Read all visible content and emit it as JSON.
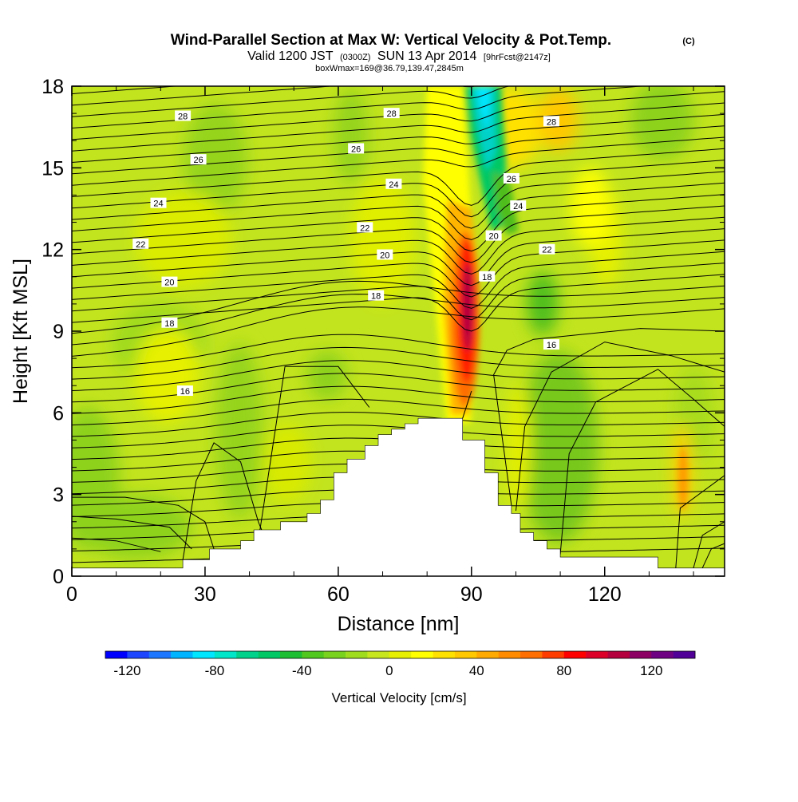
{
  "title": {
    "main": "Wind-Parallel Section at Max W: Vertical Velocity & Pot.Temp.",
    "copyright": "(C)",
    "valid_prefix": "Valid 1200 JST",
    "valid_utc": "(0300Z)",
    "valid_date": "SUN 13 Apr 2014",
    "forecast": "[9hrFcst@2147z]",
    "boxinfo": "boxWmax=169@36.79,139.47,2845m"
  },
  "chart_data": {
    "type": "contour_section",
    "xlabel": "Distance [nm]",
    "ylabel": "Height [Kft MSL]",
    "xlim": [
      0,
      147
    ],
    "ylim": [
      0,
      18
    ],
    "x_ticks": [
      0,
      30,
      60,
      90,
      120
    ],
    "y_ticks": [
      0,
      3,
      6,
      9,
      12,
      15,
      18
    ],
    "colorbar": {
      "label": "Vertical Velocity [cm/s]",
      "range": [
        -130,
        140
      ],
      "step": 10,
      "tick_values": [
        -120,
        -80,
        -40,
        0,
        40,
        80,
        120
      ],
      "tick_labels": [
        "-120",
        "-80",
        "-40",
        "0",
        "40",
        "80",
        "120"
      ],
      "colors": [
        "#0000ff",
        "#1e46ff",
        "#1e78ff",
        "#00b4ff",
        "#00e6ff",
        "#00e6c8",
        "#00d28c",
        "#00c864",
        "#1ebe32",
        "#50c81e",
        "#78d21e",
        "#a0dc1e",
        "#c8e61e",
        "#e6f000",
        "#ffff00",
        "#ffe100",
        "#ffc800",
        "#ffaa00",
        "#ff8c00",
        "#ff6e00",
        "#ff3c00",
        "#ff0000",
        "#dc0028",
        "#b4003c",
        "#8c0064",
        "#6e0082",
        "#500096"
      ]
    },
    "theta_contour_labels": [
      {
        "value": "28",
        "x": 25,
        "y": 16.9
      },
      {
        "value": "28",
        "x": 72,
        "y": 17.0
      },
      {
        "value": "28",
        "x": 108,
        "y": 16.7
      },
      {
        "value": "26",
        "x": 28.5,
        "y": 15.3
      },
      {
        "value": "26",
        "x": 64,
        "y": 15.7
      },
      {
        "value": "26",
        "x": 99,
        "y": 14.6
      },
      {
        "value": "24",
        "x": 19.5,
        "y": 13.7
      },
      {
        "value": "24",
        "x": 72.5,
        "y": 14.4
      },
      {
        "value": "24",
        "x": 100.5,
        "y": 13.6
      },
      {
        "value": "22",
        "x": 15.5,
        "y": 12.2
      },
      {
        "value": "22",
        "x": 66,
        "y": 12.8
      },
      {
        "value": "22",
        "x": 107,
        "y": 12.0
      },
      {
        "value": "20",
        "x": 22,
        "y": 10.8
      },
      {
        "value": "20",
        "x": 70.5,
        "y": 11.8
      },
      {
        "value": "20",
        "x": 95,
        "y": 12.5
      },
      {
        "value": "18",
        "x": 22,
        "y": 9.3
      },
      {
        "value": "18",
        "x": 68.5,
        "y": 10.3
      },
      {
        "value": "18",
        "x": 93.5,
        "y": 11.0
      },
      {
        "value": "16",
        "x": 25.5,
        "y": 6.8
      },
      {
        "value": "16",
        "x": 108,
        "y": 8.5
      }
    ],
    "terrain_profile": [
      [
        0,
        0.3
      ],
      [
        25,
        0.3
      ],
      [
        25,
        0.6
      ],
      [
        31,
        0.6
      ],
      [
        31,
        1.0
      ],
      [
        38,
        1.0
      ],
      [
        38,
        1.3
      ],
      [
        41,
        1.3
      ],
      [
        41,
        1.7
      ],
      [
        47,
        1.7
      ],
      [
        47,
        2.0
      ],
      [
        53,
        2.0
      ],
      [
        53,
        2.3
      ],
      [
        56,
        2.3
      ],
      [
        56,
        2.8
      ],
      [
        59,
        2.8
      ],
      [
        59,
        3.8
      ],
      [
        62,
        3.8
      ],
      [
        62,
        4.3
      ],
      [
        66,
        4.3
      ],
      [
        66,
        4.8
      ],
      [
        69,
        4.8
      ],
      [
        69,
        5.2
      ],
      [
        72,
        5.2
      ],
      [
        72,
        5.4
      ],
      [
        75,
        5.4
      ],
      [
        75,
        5.6
      ],
      [
        78,
        5.6
      ],
      [
        78,
        5.8
      ],
      [
        88,
        5.8
      ],
      [
        88,
        5.0
      ],
      [
        91,
        5.0
      ],
      [
        91,
        5.0
      ],
      [
        93,
        5.0
      ],
      [
        93,
        3.8
      ],
      [
        96,
        3.8
      ],
      [
        96,
        2.6
      ],
      [
        99,
        2.6
      ],
      [
        99,
        2.3
      ],
      [
        101,
        2.3
      ],
      [
        101,
        1.6
      ],
      [
        104,
        1.6
      ],
      [
        104,
        1.3
      ],
      [
        107,
        1.3
      ],
      [
        107,
        1.0
      ],
      [
        110,
        1.0
      ],
      [
        110,
        0.7
      ],
      [
        132,
        0.7
      ],
      [
        132,
        0.3
      ],
      [
        147,
        0.3
      ]
    ]
  }
}
